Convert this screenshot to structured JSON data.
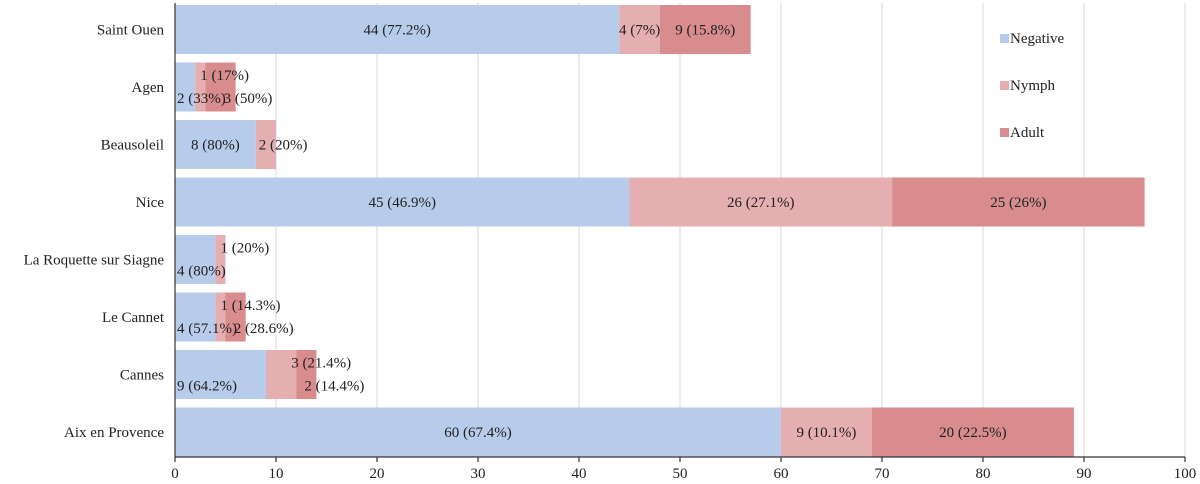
{
  "chart_data": {
    "type": "bar",
    "orientation": "horizontal",
    "stacked": true,
    "categories": [
      "Saint Ouen",
      "Agen",
      "Beausoleil",
      "Nice",
      "La Roquette sur Siagne",
      "Le Cannet",
      "Cannes",
      "Aix en Provence"
    ],
    "series": [
      {
        "name": "Negative",
        "color": "#b7cbeb",
        "values": [
          44,
          2,
          8,
          45,
          4,
          4,
          9,
          60
        ],
        "labels": [
          "44 (77.2%)",
          "2 (33%)",
          "8 (80%)",
          "45 (46.9%)",
          "4 (80%)",
          "4 (57.1%)",
          "9 (64.2%)",
          "60 (67.4%)"
        ]
      },
      {
        "name": "Nymph",
        "color": "#e5aeb0",
        "values": [
          4,
          1,
          2,
          26,
          1,
          1,
          3,
          9
        ],
        "labels": [
          "4 (7%)",
          "1 (17%)",
          "2 (20%)",
          "26 (27.1%)",
          "1 (20%)",
          "1 (14.3%)",
          "3 (21.4%)",
          "9 (10.1%)"
        ]
      },
      {
        "name": "Adult",
        "color": "#d88c8d",
        "values": [
          9,
          3,
          0,
          25,
          0,
          2,
          2,
          20
        ],
        "labels": [
          "9 (15.8%)",
          "3 (50%)",
          "",
          "25 (26%)",
          "",
          "2 (28.6%)",
          "2 (14.4%)",
          "20 (22.5%)"
        ]
      }
    ],
    "x_ticks": [
      "0",
      "10",
      "20",
      "30",
      "40",
      "50",
      "60",
      "70",
      "80",
      "90",
      "100"
    ],
    "xlim": [
      0,
      100
    ],
    "xlabel": "",
    "ylabel": "",
    "title": "",
    "grid": true,
    "legend_position": "right"
  }
}
